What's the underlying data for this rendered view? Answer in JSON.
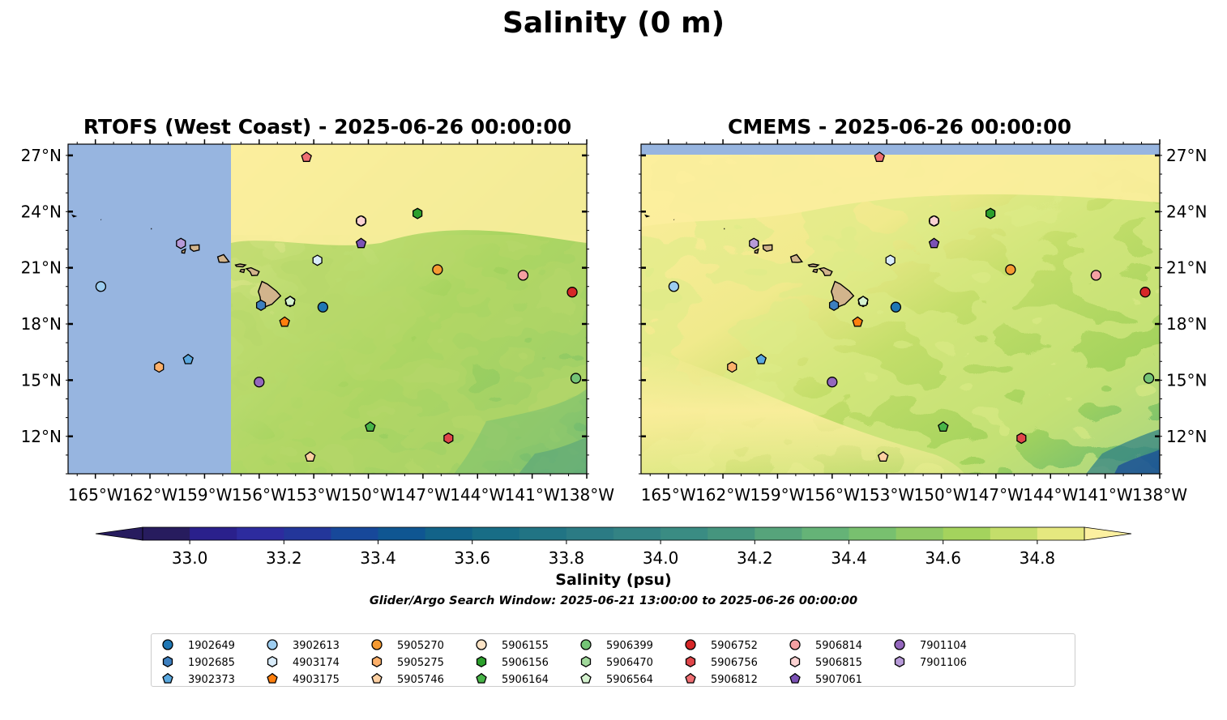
{
  "figure": {
    "suptitle": "Salinity (0 m)",
    "panel_titles": [
      "RTOFS (West Coast) - 2025-06-26 00:00:00",
      "CMEMS - 2025-06-26 00:00:00"
    ],
    "colorbar_label": "Salinity (psu)",
    "search_window": "Glider/Argo Search Window: 2025-06-21 13:00:00 to 2025-06-26 00:00:00"
  },
  "chart_data": {
    "type": "scatter",
    "title": "Salinity (0 m)",
    "xlabel": "",
    "ylabel": "",
    "xlim": [
      -166.5,
      -138
    ],
    "ylim": [
      10,
      27.6
    ],
    "x_ticks": [
      "165°W",
      "162°W",
      "159°W",
      "156°W",
      "153°W",
      "150°W",
      "147°W",
      "144°W",
      "141°W",
      "138°W"
    ],
    "y_ticks": [
      "27°N",
      "24°N",
      "21°N",
      "18°N",
      "15°N",
      "12°N"
    ],
    "colorbar": {
      "min": 32.9,
      "max": 34.9,
      "step": 0.1,
      "ticks": [
        "33.0",
        "33.2",
        "33.4",
        "33.6",
        "33.8",
        "34.0",
        "34.2",
        "34.4",
        "34.6",
        "34.8"
      ],
      "colors": [
        "#271c5e",
        "#2a208c",
        "#2d2b9e",
        "#23369a",
        "#17489a",
        "#0f5692",
        "#126389",
        "#186d86",
        "#217484",
        "#2b7b84",
        "#338384",
        "#3a8c83",
        "#45957e",
        "#56a47b",
        "#65b377",
        "#78c06f",
        "#8fc965",
        "#a4d35d",
        "#c4de6a",
        "#e5e87f"
      ],
      "under": "#271c5e",
      "over": "#fcf0a0"
    },
    "legend_items": [
      {
        "label": "1902649",
        "marker": "circle",
        "color": "#1f77b4"
      },
      {
        "label": "1902685",
        "marker": "hexagon",
        "color": "#3d7fbf"
      },
      {
        "label": "3902373",
        "marker": "pentagon",
        "color": "#5aa8df"
      },
      {
        "label": "3902613",
        "marker": "circle",
        "color": "#9dcdf0"
      },
      {
        "label": "4903174",
        "marker": "hexagon",
        "color": "#d9ecfa"
      },
      {
        "label": "4903175",
        "marker": "pentagon",
        "color": "#ff7f0e"
      },
      {
        "label": "5905270",
        "marker": "circle",
        "color": "#f59a32"
      },
      {
        "label": "5905275",
        "marker": "hexagon",
        "color": "#fdb06a"
      },
      {
        "label": "5905746",
        "marker": "pentagon",
        "color": "#fdd0a2"
      },
      {
        "label": "5906155",
        "marker": "circle",
        "color": "#fde4c6"
      },
      {
        "label": "5906156",
        "marker": "hexagon",
        "color": "#2ca02c"
      },
      {
        "label": "5906164",
        "marker": "pentagon",
        "color": "#48b548"
      },
      {
        "label": "5906399",
        "marker": "circle",
        "color": "#74c476"
      },
      {
        "label": "5906470",
        "marker": "hexagon",
        "color": "#a1d99b"
      },
      {
        "label": "5906564",
        "marker": "pentagon",
        "color": "#d5f2cf"
      },
      {
        "label": "5906752",
        "marker": "circle",
        "color": "#d62728"
      },
      {
        "label": "5906756",
        "marker": "hexagon",
        "color": "#e0464a"
      },
      {
        "label": "5906812",
        "marker": "pentagon",
        "color": "#ef6f73"
      },
      {
        "label": "5906814",
        "marker": "circle",
        "color": "#f4a0a2"
      },
      {
        "label": "5906815",
        "marker": "hexagon",
        "color": "#fcd2d2"
      },
      {
        "label": "5907061",
        "marker": "pentagon",
        "color": "#7b52b5"
      },
      {
        "label": "7901104",
        "marker": "circle",
        "color": "#9467bd"
      },
      {
        "label": "7901106",
        "marker": "hexagon",
        "color": "#b79ad8"
      }
    ],
    "series": [
      {
        "name": "1902649",
        "lon": -152.5,
        "lat": 18.9
      },
      {
        "name": "1902685",
        "lon": -155.9,
        "lat": 19.0
      },
      {
        "name": "3902373",
        "lon": -159.9,
        "lat": 16.1
      },
      {
        "name": "3902613",
        "lon": -164.7,
        "lat": 20.0
      },
      {
        "name": "4903174",
        "lon": -152.8,
        "lat": 21.4
      },
      {
        "name": "4903175",
        "lon": -154.6,
        "lat": 18.1
      },
      {
        "name": "5905270",
        "lon": -146.2,
        "lat": 20.9
      },
      {
        "name": "5905275",
        "lon": -161.5,
        "lat": 15.7
      },
      {
        "name": "5905746",
        "lon": -153.2,
        "lat": 10.9
      },
      {
        "name": "5906155",
        "lon": -150.4,
        "lat": 23.5
      },
      {
        "name": "5906156",
        "lon": -147.3,
        "lat": 23.9
      },
      {
        "name": "5906164",
        "lon": -149.9,
        "lat": 12.5
      },
      {
        "name": "5906399",
        "lon": -138.6,
        "lat": 15.1
      },
      {
        "name": "5906470",
        "lon": -154.3,
        "lat": 19.2
      },
      {
        "name": "5906564",
        "lon": -154.3,
        "lat": 19.2
      },
      {
        "name": "5906752",
        "lon": -138.8,
        "lat": 19.7
      },
      {
        "name": "5906756",
        "lon": -145.6,
        "lat": 11.9
      },
      {
        "name": "5906812",
        "lon": -153.4,
        "lat": 26.9
      },
      {
        "name": "5906814",
        "lon": -141.5,
        "lat": 20.6
      },
      {
        "name": "5906815",
        "lon": -150.4,
        "lat": 23.5
      },
      {
        "name": "5907061",
        "lon": -150.4,
        "lat": 22.3
      },
      {
        "name": "7901104",
        "lon": -156.0,
        "lat": 14.9
      },
      {
        "name": "7901106",
        "lon": -160.3,
        "lat": 22.3
      }
    ]
  }
}
